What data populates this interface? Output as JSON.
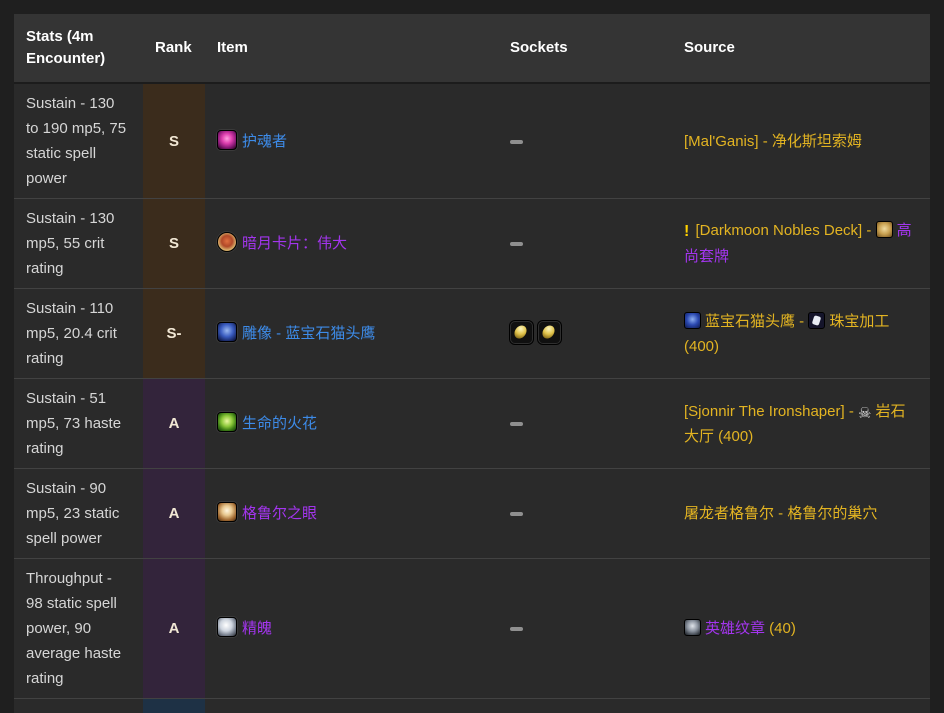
{
  "table": {
    "headers": [
      "Stats (4m Encounter)",
      "Rank",
      "Item",
      "Sockets",
      "Source"
    ],
    "colors": {
      "rank_s_bg": "#3b2c1c",
      "rank_a_bg": "#33243b",
      "rank_b_bg": "#1e3145",
      "gold_text": "#e3b422",
      "rare_link": "#3d8be8",
      "epic_link": "#a335ee"
    },
    "rows": [
      {
        "stats": "Sustain - 130 to 190 mp5, 75 static spell power",
        "rank": "S",
        "rank_bg": "#3b2c1c",
        "item": {
          "name": "护魂者",
          "quality": "rare",
          "icon": "soul-orb-icon"
        },
        "sockets": [],
        "source": [
          {
            "type": "text",
            "color": "gold",
            "text": "[Mal'Ganis] - 净化斯坦索姆"
          }
        ]
      },
      {
        "stats": "Sustain - 130 mp5, 55 crit rating",
        "rank": "S",
        "rank_bg": "#3b2c1c",
        "item": {
          "name": "暗月卡片：伟大",
          "quality": "epic",
          "icon": "darkmoon-card-icon"
        },
        "sockets": [],
        "source": [
          {
            "type": "icon",
            "icon": "exclamation-icon"
          },
          {
            "type": "text",
            "color": "gold",
            "text": " [Darkmoon Nobles Deck] - "
          },
          {
            "type": "icon",
            "icon": "deck-icon"
          },
          {
            "type": "text",
            "color": "purple",
            "text": "高尚套牌"
          }
        ]
      },
      {
        "stats": "Sustain - 110 mp5, 20.4 crit rating",
        "rank": "S-",
        "rank_bg": "#3b2c1c",
        "item": {
          "name": "雕像 - 蓝宝石猫头鹰",
          "quality": "rare",
          "icon": "sapphire-statue-icon"
        },
        "sockets": [
          "yellow",
          "yellow"
        ],
        "source": [
          {
            "type": "icon",
            "icon": "owl-icon"
          },
          {
            "type": "text",
            "color": "gold",
            "text": "蓝宝石猫头鹰 - "
          },
          {
            "type": "icon",
            "icon": "jewelcrafting-icon"
          },
          {
            "type": "text",
            "color": "gold",
            "text": "珠宝加工 (400)"
          }
        ]
      },
      {
        "stats": "Sustain - 51 mp5, 73 haste rating",
        "rank": "A",
        "rank_bg": "#33243b",
        "item": {
          "name": "生命的火花",
          "quality": "rare",
          "icon": "life-spark-icon"
        },
        "sockets": [],
        "source": [
          {
            "type": "text",
            "color": "gold",
            "text": "[Sjonnir The Ironshaper] - "
          },
          {
            "type": "icon",
            "icon": "skull-icon"
          },
          {
            "type": "text",
            "color": "gold",
            "text": "岩石大厅 (400)"
          }
        ]
      },
      {
        "stats": "Sustain - 90 mp5, 23 static spell power",
        "rank": "A",
        "rank_bg": "#33243b",
        "item": {
          "name": "格鲁尔之眼",
          "quality": "epic",
          "icon": "gruul-eye-icon"
        },
        "sockets": [],
        "source": [
          {
            "type": "text",
            "color": "gold",
            "text": "屠龙者格鲁尔 - 格鲁尔的巢穴"
          }
        ]
      },
      {
        "stats": "Throughput - 98 static spell power, 90 average haste rating",
        "rank": "A",
        "rank_bg": "#33243b",
        "item": {
          "name": "精魄",
          "quality": "epic",
          "icon": "essence-orb-icon"
        },
        "sockets": [],
        "source": [
          {
            "type": "icon",
            "icon": "emblem-icon"
          },
          {
            "type": "text",
            "color": "purple",
            "text": "英雄纹章"
          },
          {
            "type": "text",
            "color": "gold",
            "text": " (40)"
          }
        ]
      },
      {
        "stats": "",
        "rank": "",
        "rank_bg": "#1e3145",
        "item": {
          "name": "",
          "quality": "rare",
          "icon": ""
        },
        "sockets": [],
        "source": []
      }
    ]
  }
}
